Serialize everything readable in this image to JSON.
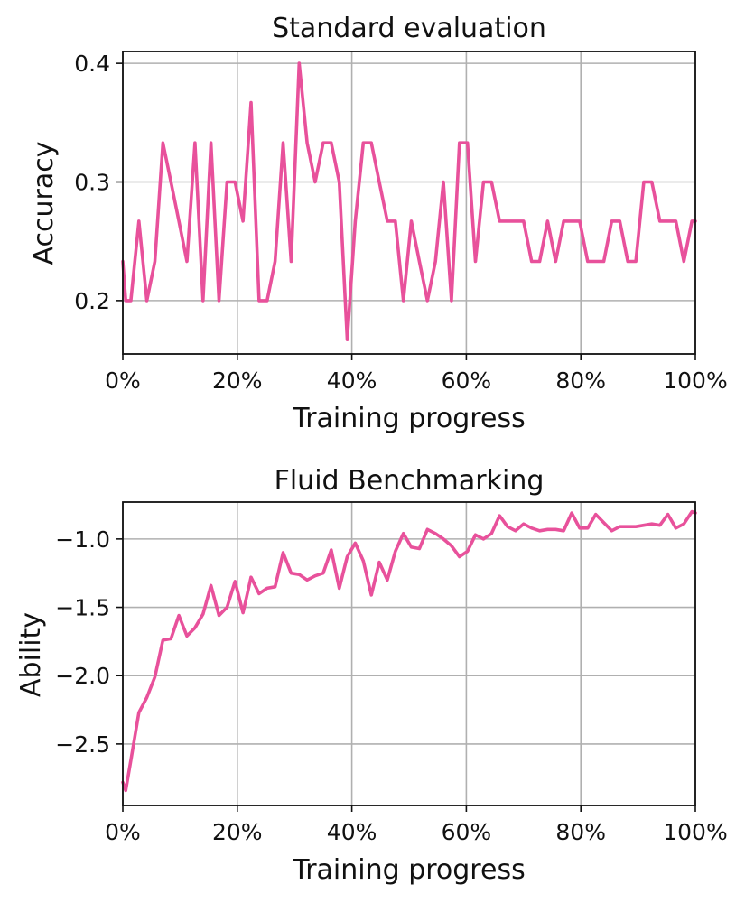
{
  "chart_data": [
    {
      "type": "line",
      "title": "Standard evaluation",
      "xlabel": "Training progress",
      "ylabel": "Accuracy",
      "x_unit": "%",
      "xlim": [
        0,
        100
      ],
      "ylim": [
        0.155,
        0.41
      ],
      "xticks": [
        0,
        20,
        40,
        60,
        80,
        100
      ],
      "xtick_labels": [
        "0%",
        "20%",
        "40%",
        "60%",
        "80%",
        "100%"
      ],
      "yticks": [
        0.2,
        0.3,
        0.4
      ],
      "ytick_labels": [
        "0.2",
        "0.3",
        "0.4"
      ],
      "grid": true,
      "line_color": "#e8519b",
      "series": [
        {
          "x": [
            0,
            0.5,
            1.4,
            2.8,
            4.2,
            5.6,
            7.0,
            8.4,
            9.8,
            11.2,
            12.6,
            14.0,
            15.4,
            16.8,
            18.2,
            19.6,
            21.0,
            22.4,
            23.8,
            25.2,
            26.6,
            28.0,
            29.4,
            30.8,
            32.2,
            33.6,
            35.0,
            36.4,
            37.8,
            39.2,
            40.6,
            42.0,
            43.4,
            44.8,
            46.2,
            47.6,
            49.0,
            50.4,
            51.8,
            53.2,
            54.6,
            56.0,
            57.4,
            58.8,
            60.2,
            61.6,
            63.0,
            64.4,
            65.8,
            67.2,
            68.6,
            70.0,
            71.4,
            72.8,
            74.2,
            75.6,
            77.0,
            78.4,
            79.8,
            81.2,
            82.6,
            84.0,
            85.4,
            86.8,
            88.2,
            89.6,
            91.0,
            92.4,
            93.8,
            95.2,
            96.6,
            98.0,
            99.4,
            100
          ],
          "y": [
            0.233,
            0.2,
            0.2,
            0.267,
            0.2,
            0.233,
            0.333,
            0.3,
            0.267,
            0.233,
            0.333,
            0.2,
            0.333,
            0.2,
            0.3,
            0.3,
            0.267,
            0.367,
            0.2,
            0.2,
            0.233,
            0.333,
            0.233,
            0.4,
            0.333,
            0.3,
            0.333,
            0.333,
            0.3,
            0.167,
            0.267,
            0.333,
            0.333,
            0.3,
            0.267,
            0.267,
            0.2,
            0.267,
            0.233,
            0.2,
            0.233,
            0.3,
            0.2,
            0.333,
            0.333,
            0.233,
            0.3,
            0.3,
            0.267,
            0.267,
            0.267,
            0.267,
            0.233,
            0.233,
            0.267,
            0.233,
            0.267,
            0.267,
            0.267,
            0.233,
            0.233,
            0.233,
            0.267,
            0.267,
            0.233,
            0.233,
            0.3,
            0.3,
            0.267,
            0.267,
            0.267,
            0.233,
            0.267,
            0.267
          ]
        }
      ]
    },
    {
      "type": "line",
      "title": "Fluid Benchmarking",
      "xlabel": "Training progress",
      "ylabel": "Ability",
      "x_unit": "%",
      "xlim": [
        0,
        100
      ],
      "ylim": [
        -2.95,
        -0.73
      ],
      "xticks": [
        0,
        20,
        40,
        60,
        80,
        100
      ],
      "xtick_labels": [
        "0%",
        "20%",
        "40%",
        "60%",
        "80%",
        "100%"
      ],
      "yticks": [
        -2.5,
        -2.0,
        -1.5,
        -1.0
      ],
      "ytick_labels": [
        "−2.5",
        "−2.0",
        "−1.5",
        "−1.0"
      ],
      "grid": true,
      "line_color": "#e8519b",
      "series": [
        {
          "x": [
            0,
            0.5,
            1.4,
            2.8,
            4.2,
            5.6,
            7.0,
            8.4,
            9.8,
            11.2,
            12.6,
            14.0,
            15.4,
            16.8,
            18.2,
            19.6,
            21.0,
            22.4,
            23.8,
            25.2,
            26.6,
            28.0,
            29.4,
            30.8,
            32.2,
            33.6,
            35.0,
            36.4,
            37.8,
            39.2,
            40.6,
            42.0,
            43.4,
            44.8,
            46.2,
            47.6,
            49.0,
            50.4,
            51.8,
            53.2,
            54.6,
            56.0,
            57.4,
            58.8,
            60.2,
            61.6,
            63.0,
            64.4,
            65.8,
            67.2,
            68.6,
            70.0,
            71.4,
            72.8,
            74.2,
            75.6,
            77.0,
            78.4,
            79.8,
            81.2,
            82.6,
            84.0,
            85.4,
            86.8,
            88.2,
            89.6,
            91.0,
            92.4,
            93.8,
            95.2,
            96.6,
            98.0,
            99.4,
            100
          ],
          "y": [
            -2.78,
            -2.84,
            -2.62,
            -2.27,
            -2.16,
            -2.01,
            -1.74,
            -1.73,
            -1.56,
            -1.71,
            -1.65,
            -1.55,
            -1.34,
            -1.56,
            -1.5,
            -1.31,
            -1.54,
            -1.28,
            -1.4,
            -1.36,
            -1.35,
            -1.1,
            -1.25,
            -1.26,
            -1.3,
            -1.27,
            -1.25,
            -1.08,
            -1.36,
            -1.13,
            -1.03,
            -1.16,
            -1.41,
            -1.17,
            -1.3,
            -1.09,
            -0.96,
            -1.06,
            -1.07,
            -0.93,
            -0.96,
            -1.0,
            -1.05,
            -1.13,
            -1.09,
            -0.97,
            -1.0,
            -0.96,
            -0.83,
            -0.91,
            -0.94,
            -0.89,
            -0.92,
            -0.94,
            -0.93,
            -0.93,
            -0.94,
            -0.81,
            -0.92,
            -0.92,
            -0.82,
            -0.88,
            -0.94,
            -0.91,
            -0.91,
            -0.91,
            -0.9,
            -0.89,
            -0.9,
            -0.82,
            -0.92,
            -0.89,
            -0.8,
            -0.81
          ]
        }
      ]
    }
  ]
}
